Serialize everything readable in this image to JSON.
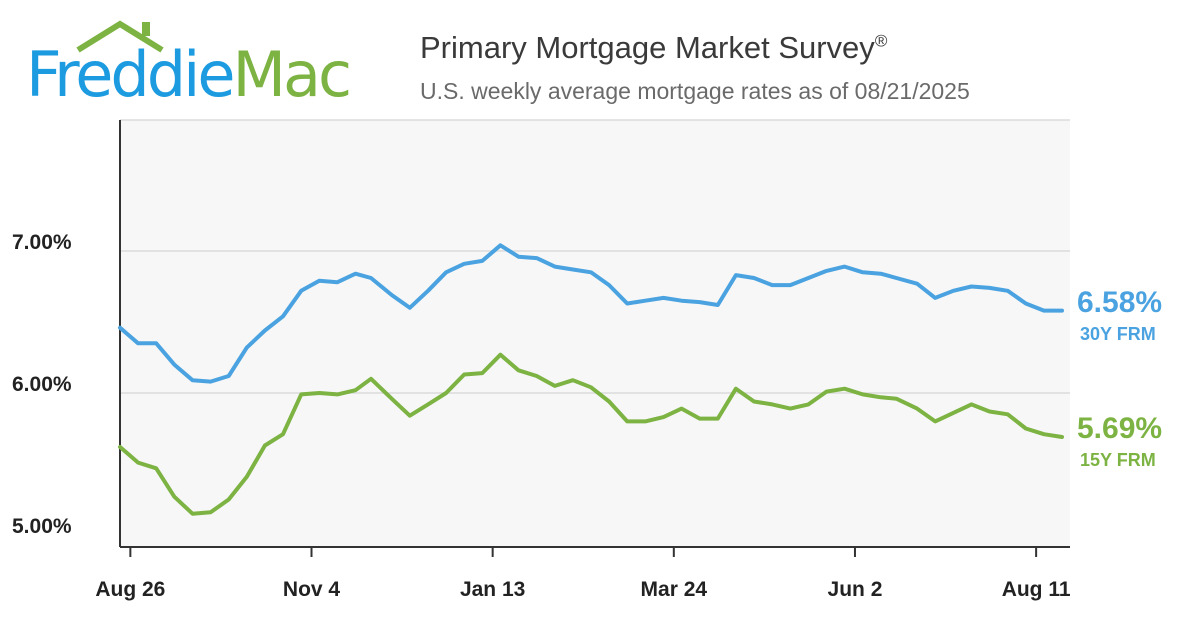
{
  "logo": {
    "text_part1": "Freddie",
    "text_part2": "Mac"
  },
  "header": {
    "title": "Primary Mortgage Market Survey",
    "title_mark": "®",
    "subtitle": "U.S. weekly average mortgage rates as of 08/21/2025"
  },
  "colors": {
    "series_30y": "#4aa3e0",
    "series_15y": "#7cb342",
    "plot_bg": "#f7f7f7",
    "grid": "#dcdcdc",
    "axis": "#333333"
  },
  "chart_data": {
    "type": "line",
    "title": "Primary Mortgage Market Survey",
    "subtitle": "U.S. weekly average mortgage rates as of 08/21/2025",
    "xlabel": "",
    "ylabel": "",
    "x": [
      "2024-08-22",
      "2024-08-29",
      "2024-09-05",
      "2024-09-12",
      "2024-09-19",
      "2024-09-26",
      "2024-10-03",
      "2024-10-10",
      "2024-10-17",
      "2024-10-24",
      "2024-10-31",
      "2024-11-07",
      "2024-11-14",
      "2024-11-21",
      "2024-11-27",
      "2024-12-05",
      "2024-12-12",
      "2024-12-19",
      "2024-12-26",
      "2025-01-02",
      "2025-01-09",
      "2025-01-16",
      "2025-01-23",
      "2025-01-30",
      "2025-02-06",
      "2025-02-13",
      "2025-02-20",
      "2025-02-27",
      "2025-03-06",
      "2025-03-13",
      "2025-03-20",
      "2025-03-27",
      "2025-04-03",
      "2025-04-10",
      "2025-04-17",
      "2025-04-24",
      "2025-05-01",
      "2025-05-08",
      "2025-05-15",
      "2025-05-22",
      "2025-05-29",
      "2025-06-05",
      "2025-06-12",
      "2025-06-18",
      "2025-06-26",
      "2025-07-03",
      "2025-07-10",
      "2025-07-17",
      "2025-07-24",
      "2025-07-31",
      "2025-08-07",
      "2025-08-14",
      "2025-08-21"
    ],
    "x_ticks": [
      "Aug 26",
      "Nov 4",
      "Jan 13",
      "Mar 24",
      "Jun 2",
      "Aug 11"
    ],
    "y_ticks": [
      "5.00%",
      "6.00%",
      "7.00%"
    ],
    "ylim": [
      5.0,
      8.0
    ],
    "grid": true,
    "series": [
      {
        "name": "30Y FRM",
        "end_label": "6.58%",
        "values": [
          6.46,
          6.35,
          6.35,
          6.2,
          6.09,
          6.08,
          6.12,
          6.32,
          6.44,
          6.54,
          6.72,
          6.79,
          6.78,
          6.84,
          6.81,
          6.69,
          6.6,
          6.72,
          6.85,
          6.91,
          6.93,
          7.04,
          6.96,
          6.95,
          6.89,
          6.87,
          6.85,
          6.76,
          6.63,
          6.65,
          6.67,
          6.65,
          6.64,
          6.62,
          6.83,
          6.81,
          6.76,
          6.76,
          6.81,
          6.86,
          6.89,
          6.85,
          6.84,
          6.81,
          6.77,
          6.67,
          6.72,
          6.75,
          6.74,
          6.72,
          6.63,
          6.58,
          6.58
        ]
      },
      {
        "name": "15Y FRM",
        "end_label": "5.69%",
        "values": [
          5.62,
          5.51,
          5.47,
          5.27,
          5.15,
          5.16,
          5.25,
          5.41,
          5.63,
          5.71,
          5.99,
          6.0,
          5.99,
          6.02,
          6.1,
          5.96,
          5.84,
          5.92,
          6.0,
          6.13,
          6.14,
          6.27,
          6.16,
          6.12,
          6.05,
          6.09,
          6.04,
          5.94,
          5.8,
          5.8,
          5.83,
          5.89,
          5.82,
          5.82,
          6.03,
          5.94,
          5.92,
          5.89,
          5.92,
          6.01,
          6.03,
          5.99,
          5.97,
          5.96,
          5.89,
          5.8,
          5.86,
          5.92,
          5.87,
          5.85,
          5.75,
          5.71,
          5.69
        ]
      }
    ]
  }
}
